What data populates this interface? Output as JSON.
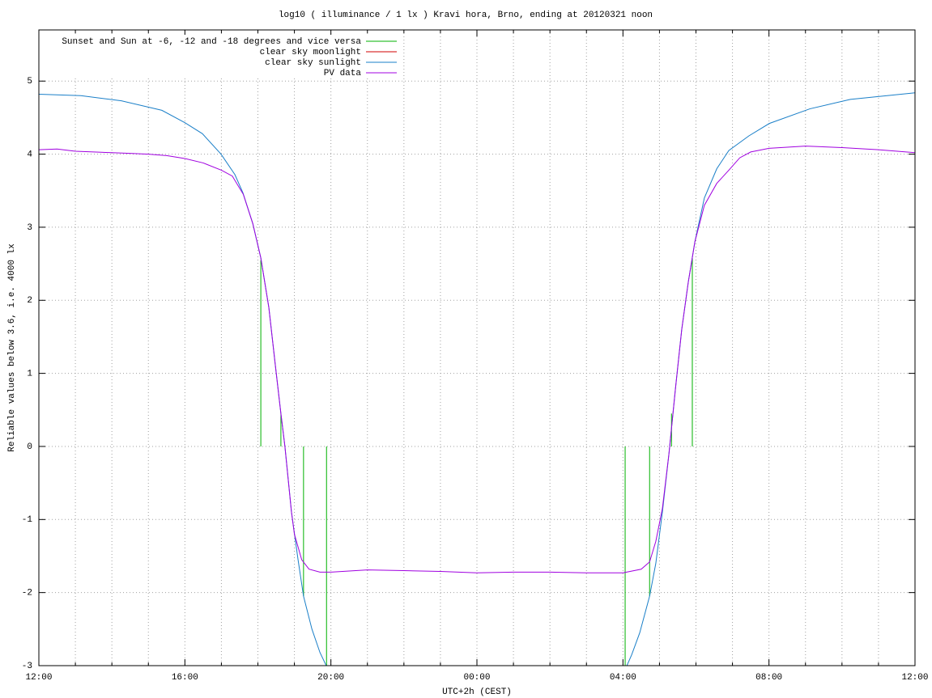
{
  "chart_data": {
    "type": "line",
    "title": "log10 ( illuminance / 1 lx ) Kravi hora, Brno, ending at 20120321 noon",
    "xlabel": "UTC+2h (CEST)",
    "ylabel": "Reliable values below 3.6, i.e. 4000 lx",
    "xlim": [
      12,
      36
    ],
    "ylim": [
      -3,
      5.7
    ],
    "xticks": [
      {
        "value": 12,
        "label": "12:00"
      },
      {
        "value": 16,
        "label": "16:00"
      },
      {
        "value": 20,
        "label": "20:00"
      },
      {
        "value": 24,
        "label": "00:00"
      },
      {
        "value": 28,
        "label": "04:00"
      },
      {
        "value": 32,
        "label": "08:00"
      },
      {
        "value": 36,
        "label": "12:00"
      }
    ],
    "xminorticks": [
      13,
      14,
      15,
      17,
      18,
      19,
      21,
      22,
      23,
      25,
      26,
      27,
      29,
      30,
      31,
      33,
      34,
      35
    ],
    "yticks": [
      -3,
      -2,
      -1,
      0,
      1,
      2,
      3,
      4,
      5
    ],
    "grid": true,
    "legend": "top left",
    "series": [
      {
        "name": "Sunset and Sun at -6, -12 and -18 degrees and vice versa",
        "color": "#00b000",
        "style": "impulses",
        "x": [
          18.08,
          18.63,
          19.25,
          19.88,
          28.06,
          28.73,
          29.33,
          29.9
        ],
        "values": [
          2.55,
          0.45,
          -2.05,
          -3,
          -3,
          -2.05,
          0.45,
          2.6
        ]
      },
      {
        "name": "clear sky moonlight",
        "color": "#d00000",
        "style": "lines",
        "x": [],
        "values": []
      },
      {
        "name": "clear sky sunlight",
        "color": "#1a7fc8",
        "style": "lines",
        "x": [
          12.0,
          13.15,
          14.26,
          15.37,
          16.0,
          16.48,
          16.99,
          17.37,
          17.59,
          17.86,
          18.08,
          18.3,
          18.48,
          18.63,
          18.74,
          18.92,
          19.1,
          19.25,
          19.48,
          19.7,
          19.92,
          24.0,
          28.02,
          28.24,
          28.46,
          28.73,
          28.9,
          29.08,
          29.26,
          29.44,
          29.61,
          29.79,
          29.97,
          30.23,
          30.57,
          30.9,
          31.45,
          32.01,
          33.12,
          34.23,
          36.0
        ],
        "values": [
          4.82,
          4.8,
          4.73,
          4.6,
          4.43,
          4.28,
          4.0,
          3.72,
          3.47,
          3.05,
          2.58,
          1.9,
          1.1,
          0.45,
          0.0,
          -0.9,
          -1.55,
          -2.05,
          -2.5,
          -2.82,
          -3.05,
          null,
          -3.1,
          -2.85,
          -2.55,
          -2.05,
          -1.6,
          -0.9,
          -0.1,
          0.8,
          1.6,
          2.25,
          2.8,
          3.4,
          3.8,
          4.05,
          4.25,
          4.42,
          4.62,
          4.75,
          4.84
        ]
      },
      {
        "name": "PV data",
        "color": "#a000e0",
        "style": "lines",
        "x": [
          12.0,
          12.5,
          13.0,
          13.5,
          14.0,
          14.5,
          15.0,
          15.5,
          16.0,
          16.5,
          17.0,
          17.3,
          17.6,
          17.86,
          18.08,
          18.3,
          18.48,
          18.63,
          18.74,
          18.92,
          19.0,
          19.2,
          19.4,
          19.7,
          20.0,
          21.0,
          22.0,
          23.0,
          24.0,
          25.0,
          26.0,
          27.0,
          28.0,
          28.5,
          28.73,
          28.9,
          29.08,
          29.26,
          29.44,
          29.61,
          29.79,
          29.97,
          30.23,
          30.57,
          30.9,
          31.2,
          31.5,
          32.0,
          33.0,
          34.0,
          35.0,
          36.0
        ],
        "values": [
          4.06,
          4.07,
          4.04,
          4.03,
          4.02,
          4.01,
          4.0,
          3.98,
          3.94,
          3.88,
          3.78,
          3.7,
          3.45,
          3.05,
          2.58,
          1.9,
          1.1,
          0.45,
          0.0,
          -0.9,
          -1.2,
          -1.55,
          -1.68,
          -1.72,
          -1.72,
          -1.69,
          -1.7,
          -1.71,
          -1.73,
          -1.72,
          -1.72,
          -1.73,
          -1.73,
          -1.68,
          -1.58,
          -1.3,
          -0.85,
          -0.1,
          0.8,
          1.6,
          2.25,
          2.8,
          3.3,
          3.6,
          3.78,
          3.95,
          4.03,
          4.08,
          4.11,
          4.09,
          4.06,
          4.02
        ]
      }
    ]
  }
}
